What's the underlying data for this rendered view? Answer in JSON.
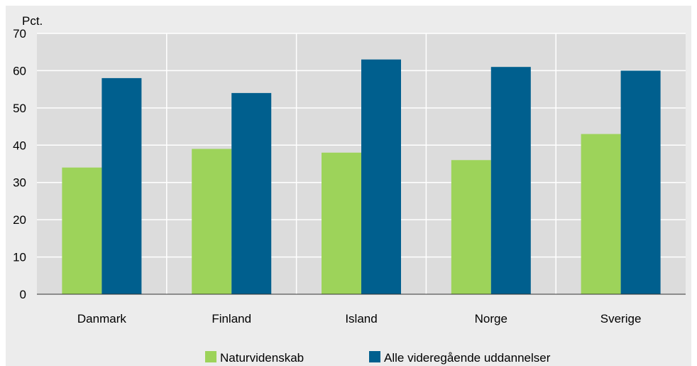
{
  "chart_data": {
    "type": "bar",
    "categories": [
      "Danmark",
      "Finland",
      "Island",
      "Norge",
      "Sverige"
    ],
    "series": [
      {
        "name": "Naturvidenskab",
        "color": "#9dd35a",
        "values": [
          34,
          39,
          38,
          36,
          43
        ]
      },
      {
        "name": "Alle videregående uddannelser",
        "color": "#005f8e",
        "values": [
          58,
          54,
          63,
          61,
          60
        ]
      }
    ],
    "ylabel": "Pct.",
    "ylim": [
      0,
      70
    ],
    "yticks": [
      0,
      10,
      20,
      30,
      40,
      50,
      60,
      70
    ],
    "grid": true,
    "legend_position": "bottom",
    "colors": {
      "outer_background": "#ececec",
      "plot_background": "#dcdcdc",
      "grid": "#ffffff",
      "axis": "#333333"
    }
  }
}
